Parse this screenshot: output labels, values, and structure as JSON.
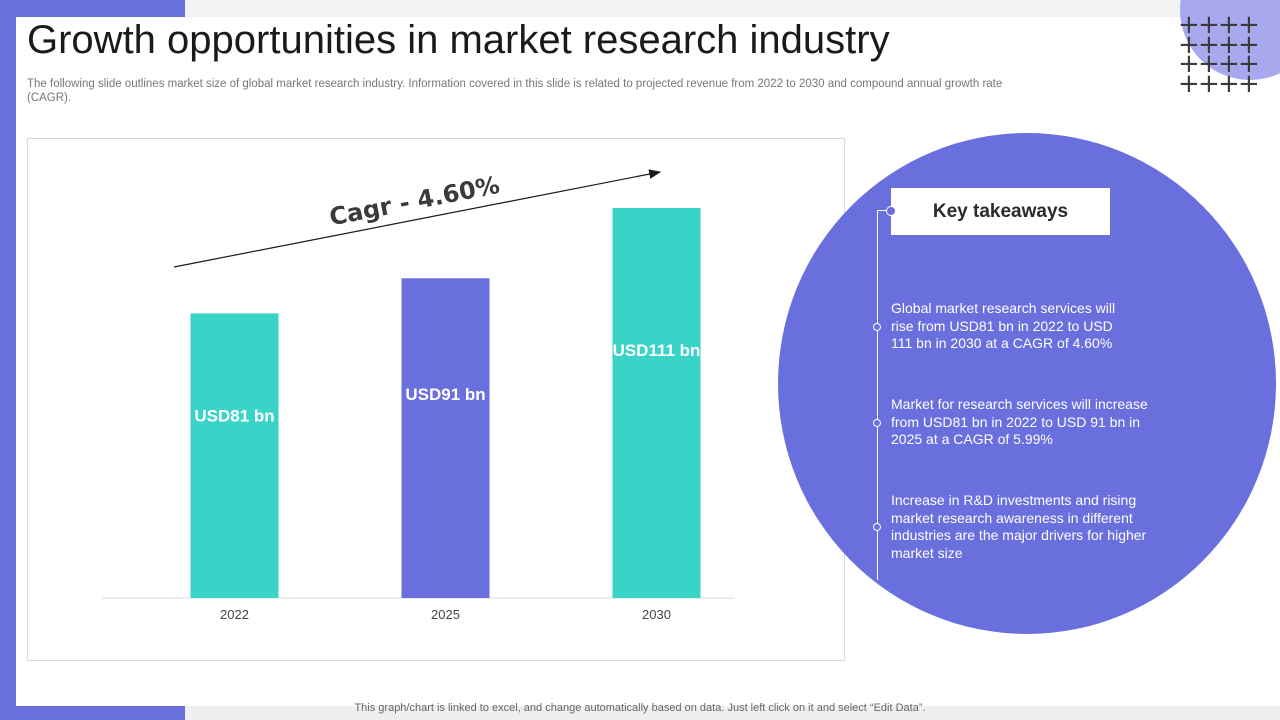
{
  "header": {
    "title": "Growth opportunities in market research industry",
    "subtitle": "The following slide outlines market size of global market research industry. Information covered in this slide is related to projected revenue from 2022 to 2030 and compound annual growth rate (CAGR)."
  },
  "chart_data": {
    "type": "bar",
    "categories": [
      "2022",
      "2025",
      "2030"
    ],
    "values": [
      81,
      91,
      111
    ],
    "value_labels": [
      "USD81 bn",
      "USD91 bn",
      "USD111 bn"
    ],
    "bar_colors": [
      "#3ad3c8",
      "#6a6fde",
      "#3ad3c8"
    ],
    "annotation": "Cagr - 4.60%",
    "title": "",
    "xlabel": "",
    "ylabel": "",
    "ylim": [
      0,
      111
    ],
    "grid": false
  },
  "takeaways": {
    "title": "Key takeaways",
    "items": [
      "Global market research services will rise from USD81 bn in 2022 to USD 111 bn in 2030 at a CAGR of 4.60%",
      "Market for research services will increase from USD81 bn in 2022 to USD 91 bn in 2025 at a CAGR of 5.99%",
      "Increase in R&D investments and rising market research awareness in different industries are the major drivers for higher market size"
    ]
  },
  "footer": {
    "note": "This graph/chart is linked to excel,  and change automatically based on data. Just left click on it and select “Edit Data”."
  },
  "colors": {
    "accent": "#6a6fde",
    "teal": "#3ad3c8",
    "light_accent": "#a7a8ee"
  }
}
